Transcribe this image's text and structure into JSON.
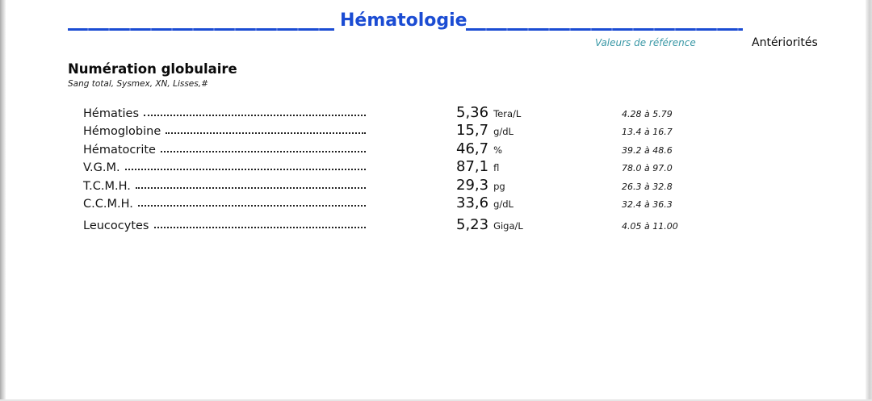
{
  "header": {
    "section_title": "Hématologie",
    "reference_column_label": "Valeurs de référence",
    "anteriorites_label": "Antériorités"
  },
  "subsection": {
    "title": "Numération globulaire",
    "subtitle": "Sang total, Sysmex, XN, Lisses,#"
  },
  "results": [
    {
      "label": "Hématies",
      "value": "5,36",
      "unit": "Tera/L",
      "reference": "4.28 à 5.79"
    },
    {
      "label": "Hémoglobine",
      "value": "15,7",
      "unit": "g/dL",
      "reference": "13.4 à 16.7"
    },
    {
      "label": "Hématocrite",
      "value": "46,7",
      "unit": "%",
      "reference": "39.2 à 48.6"
    },
    {
      "label": "V.G.M.",
      "value": "87,1",
      "unit": "fl",
      "reference": "78.0 à 97.0"
    },
    {
      "label": "T.C.M.H.",
      "value": "29,3",
      "unit": "pg",
      "reference": "26.3 à 32.8"
    },
    {
      "label": "C.C.M.H.",
      "value": "33,6",
      "unit": "g/dL",
      "reference": "32.4 à 36.3"
    },
    {
      "label": "Leucocytes",
      "value": "5,23",
      "unit": "Giga/L",
      "reference": "4.05 à 11.00",
      "extra_gap": true
    }
  ],
  "colors": {
    "title_blue": "#1b4cd3",
    "reference_teal": "#3a98a6",
    "text_black": "#111111"
  }
}
